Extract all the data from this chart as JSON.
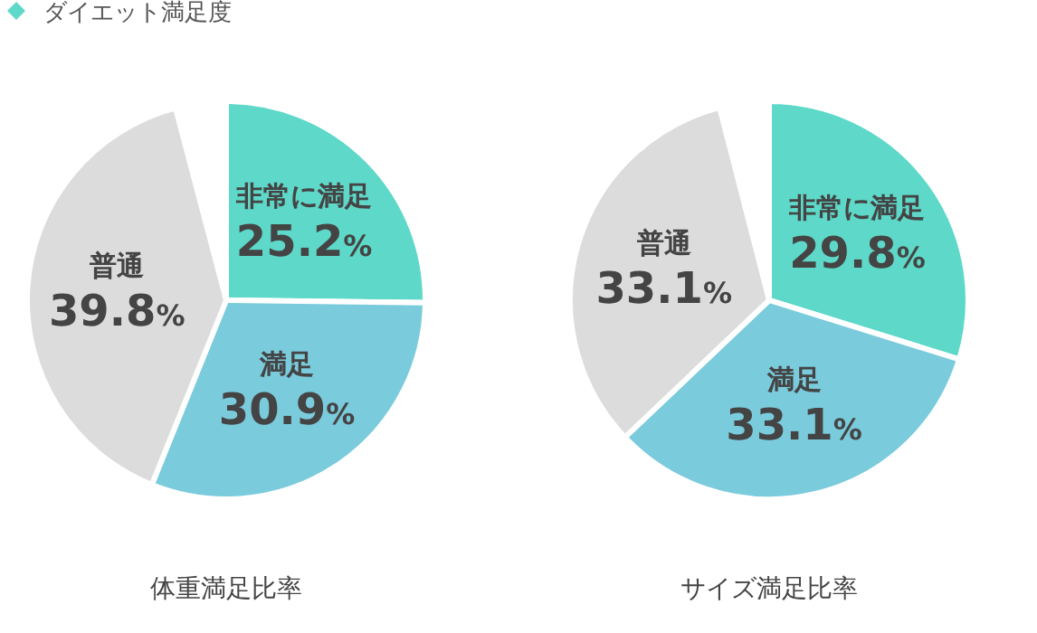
{
  "chart_data": [
    {
      "type": "pie",
      "title": "ダイエット満足度",
      "xlabel": "体重満足比率",
      "categories": [
        "非常に満足",
        "満足",
        "普通"
      ],
      "values": [
        25.2,
        30.9,
        39.8
      ],
      "colors": [
        "#5ed8c8",
        "#7acbdc",
        "#dcdcdc"
      ],
      "value_labels": [
        "25.2%",
        "30.9%",
        "39.8%"
      ]
    },
    {
      "type": "pie",
      "xlabel": "サイズ満足比率",
      "categories": [
        "非常に満足",
        "満足",
        "普通"
      ],
      "values": [
        29.8,
        33.1,
        33.1
      ],
      "colors": [
        "#5ed8c8",
        "#7acbdc",
        "#dcdcdc"
      ],
      "value_labels": [
        "29.8%",
        "33.1%",
        "33.1%"
      ]
    }
  ]
}
